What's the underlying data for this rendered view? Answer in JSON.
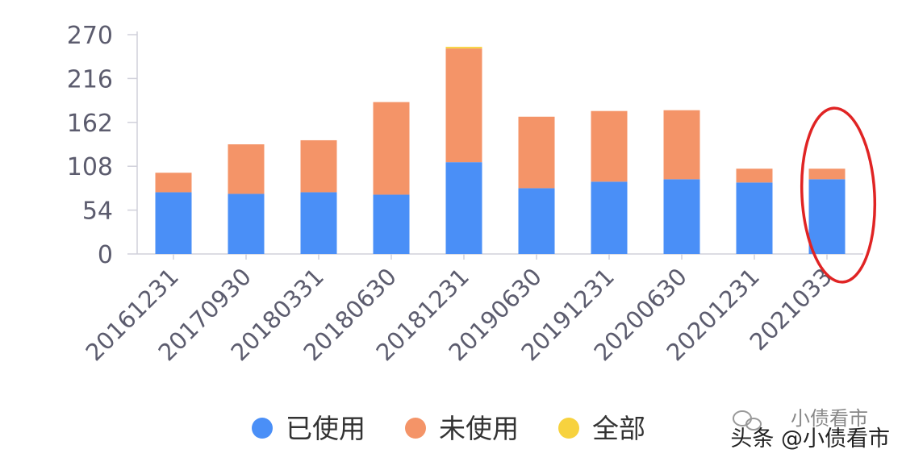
{
  "chart_data": {
    "type": "bar",
    "stacked": true,
    "categories": [
      "20161231",
      "20170930",
      "20180331",
      "20180630",
      "20181231",
      "20190630",
      "20191231",
      "20200630",
      "20201231",
      "2021033"
    ],
    "series": [
      {
        "name": "已使用",
        "color": "#4a8ff7",
        "values": [
          76,
          74,
          76,
          73,
          113,
          81,
          89,
          92,
          88,
          92
        ]
      },
      {
        "name": "未使用",
        "color": "#f49468",
        "values": [
          24,
          61,
          64,
          114,
          140,
          88,
          87,
          85,
          17,
          13
        ]
      },
      {
        "name": "全部",
        "color": "#f7d23e",
        "values": [
          0,
          0,
          0,
          0,
          2,
          0,
          0,
          0,
          0,
          0
        ]
      }
    ],
    "yticks": [
      0,
      54,
      108,
      162,
      216,
      270
    ],
    "ylim": [
      0,
      270
    ],
    "grid": false,
    "legend": "bottom",
    "annotation": {
      "type": "ellipse",
      "target": "2021033",
      "color": "#e02424"
    }
  },
  "watermark": {
    "faint_text": "小债看市",
    "text": "头条 @小债看市"
  }
}
